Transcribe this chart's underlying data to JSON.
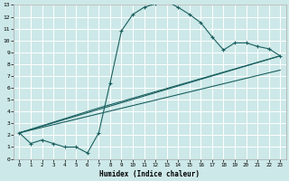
{
  "xlabel": "Humidex (Indice chaleur)",
  "bg_color": "#cde8e8",
  "grid_color": "#ffffff",
  "line_color": "#1a5f5f",
  "xlim": [
    -0.5,
    23.5
  ],
  "ylim": [
    0,
    13
  ],
  "xticks": [
    0,
    1,
    2,
    3,
    4,
    5,
    6,
    7,
    8,
    9,
    10,
    11,
    12,
    13,
    14,
    15,
    16,
    17,
    18,
    19,
    20,
    21,
    22,
    23
  ],
  "yticks": [
    0,
    1,
    2,
    3,
    4,
    5,
    6,
    7,
    8,
    9,
    10,
    11,
    12,
    13
  ],
  "curve1_x": [
    0,
    1,
    2,
    3,
    4,
    5,
    6,
    7,
    8,
    9,
    10,
    11,
    12,
    13,
    14,
    15,
    16,
    17,
    18,
    19,
    20,
    21,
    22,
    23
  ],
  "curve1_y": [
    2.2,
    1.3,
    1.6,
    1.3,
    1.0,
    1.0,
    0.5,
    2.2,
    6.4,
    10.8,
    12.2,
    12.8,
    13.1,
    13.3,
    12.8,
    12.2,
    11.5,
    10.3,
    9.2,
    9.8,
    9.8,
    9.5,
    9.3,
    8.7
  ],
  "line1_x": [
    0,
    23
  ],
  "line1_y": [
    2.2,
    8.7
  ],
  "line2_x": [
    0,
    7,
    23
  ],
  "line2_y": [
    2.2,
    4.3,
    8.7
  ],
  "line3_x": [
    0,
    23
  ],
  "line3_y": [
    2.2,
    7.5
  ]
}
